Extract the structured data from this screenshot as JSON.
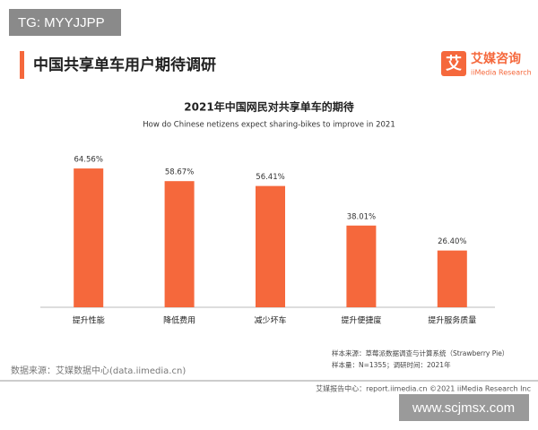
{
  "watermark_top": "TG: MYYJJPP",
  "header": {
    "title": "中国共享单车用户期待调研",
    "logo_mark": "艾",
    "logo_name": "艾媒咨询",
    "logo_sub": "iiMedia Research"
  },
  "chart_data": {
    "type": "bar",
    "title": "2021年中国网民对共享单车的期待",
    "subtitle": "How do Chinese netizens expect sharing-bikes to improve in 2021",
    "categories": [
      "提升性能",
      "降低费用",
      "减少坏车",
      "提升便捷度",
      "提升服务质量"
    ],
    "values": [
      64.56,
      58.67,
      56.41,
      38.01,
      26.4
    ],
    "value_labels": [
      "64.56%",
      "58.67%",
      "56.41%",
      "38.01%",
      "26.40%"
    ],
    "color": "#f5683c"
  },
  "notes": [
    "样本来源：草莓派数据调查与计算系统（Strawberry Pie）",
    "样本量：N=1355；调研时间：2021年"
  ],
  "source": "数据来源：艾媒数据中心(data.iimedia.cn)",
  "footer": "艾媒报告中心：report.iimedia.cn    ©2021  iiMedia Research  Inc",
  "watermark_bottom": "www.scjmsx.com"
}
